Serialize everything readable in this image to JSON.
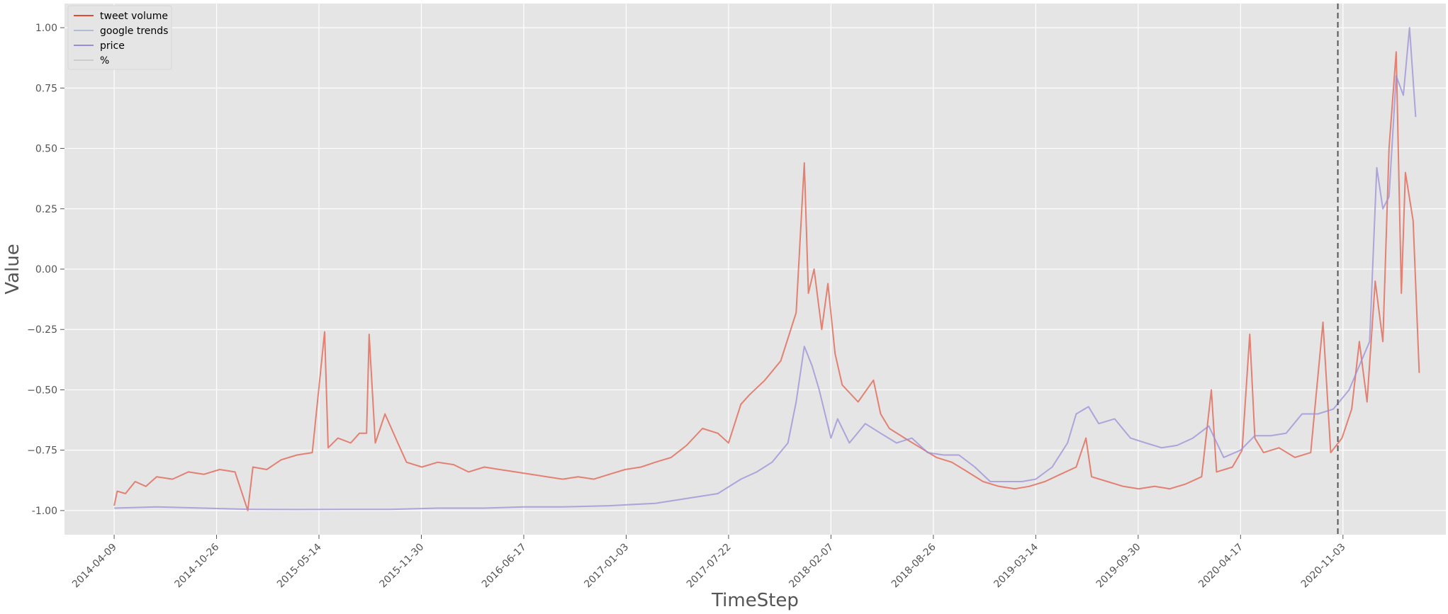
{
  "chart_data": {
    "type": "line",
    "title": "",
    "xlabel": "TimeStep",
    "ylabel": "Value",
    "ylim": [
      -1.1,
      1.1
    ],
    "xlim": [
      "2014-01-02",
      "2021-05-23"
    ],
    "grid": true,
    "legend_position": "top-left",
    "x_ticks": [
      "2014-04-09",
      "2014-10-26",
      "2015-05-14",
      "2015-11-30",
      "2016-06-17",
      "2017-01-03",
      "2017-07-22",
      "2018-02-07",
      "2018-08-26",
      "2019-03-14",
      "2019-09-30",
      "2020-04-17",
      "2020-11-03"
    ],
    "y_ticks": [
      "-1.00",
      "−0.75",
      "−0.50",
      "−0.25",
      "0.00",
      "0.25",
      "0.50",
      "0.75",
      "1.00"
    ],
    "vertical_marker": {
      "x": "2020-10-24",
      "style": "dashed",
      "color": "#555555"
    },
    "series": [
      {
        "name": "tweet volume",
        "color": "#e24a33",
        "opacity": 0.65,
        "points": [
          [
            "2014-04-09",
            -0.98
          ],
          [
            "2014-04-15",
            -0.92
          ],
          [
            "2014-05-01",
            -0.93
          ],
          [
            "2014-05-20",
            -0.88
          ],
          [
            "2014-06-10",
            -0.9
          ],
          [
            "2014-07-01",
            -0.86
          ],
          [
            "2014-08-01",
            -0.87
          ],
          [
            "2014-09-01",
            -0.84
          ],
          [
            "2014-10-01",
            -0.85
          ],
          [
            "2014-11-01",
            -0.83
          ],
          [
            "2014-12-01",
            -0.84
          ],
          [
            "2014-12-26",
            -1.0
          ],
          [
            "2015-01-05",
            -0.82
          ],
          [
            "2015-02-01",
            -0.83
          ],
          [
            "2015-03-01",
            -0.79
          ],
          [
            "2015-04-01",
            -0.77
          ],
          [
            "2015-05-01",
            -0.76
          ],
          [
            "2015-05-25",
            -0.26
          ],
          [
            "2015-06-01",
            -0.74
          ],
          [
            "2015-06-20",
            -0.7
          ],
          [
            "2015-07-15",
            -0.72
          ],
          [
            "2015-08-01",
            -0.68
          ],
          [
            "2015-08-15",
            -0.68
          ],
          [
            "2015-08-20",
            -0.27
          ],
          [
            "2015-09-01",
            -0.72
          ],
          [
            "2015-09-20",
            -0.6
          ],
          [
            "2015-10-15",
            -0.72
          ],
          [
            "2015-11-01",
            -0.8
          ],
          [
            "2015-12-01",
            -0.82
          ],
          [
            "2016-01-01",
            -0.8
          ],
          [
            "2016-02-01",
            -0.81
          ],
          [
            "2016-03-01",
            -0.84
          ],
          [
            "2016-04-01",
            -0.82
          ],
          [
            "2016-05-01",
            -0.83
          ],
          [
            "2016-06-01",
            -0.84
          ],
          [
            "2016-07-01",
            -0.85
          ],
          [
            "2016-08-01",
            -0.86
          ],
          [
            "2016-09-01",
            -0.87
          ],
          [
            "2016-10-01",
            -0.86
          ],
          [
            "2016-11-01",
            -0.87
          ],
          [
            "2016-12-01",
            -0.85
          ],
          [
            "2017-01-01",
            -0.83
          ],
          [
            "2017-02-01",
            -0.82
          ],
          [
            "2017-03-01",
            -0.8
          ],
          [
            "2017-04-01",
            -0.78
          ],
          [
            "2017-05-01",
            -0.73
          ],
          [
            "2017-06-01",
            -0.66
          ],
          [
            "2017-07-01",
            -0.68
          ],
          [
            "2017-07-22",
            -0.72
          ],
          [
            "2017-08-15",
            -0.56
          ],
          [
            "2017-09-01",
            -0.52
          ],
          [
            "2017-10-01",
            -0.46
          ],
          [
            "2017-11-01",
            -0.38
          ],
          [
            "2017-12-01",
            -0.18
          ],
          [
            "2017-12-17",
            0.44
          ],
          [
            "2017-12-25",
            -0.1
          ],
          [
            "2018-01-05",
            0.0
          ],
          [
            "2018-01-20",
            -0.25
          ],
          [
            "2018-02-01",
            -0.06
          ],
          [
            "2018-02-15",
            -0.35
          ],
          [
            "2018-03-01",
            -0.48
          ],
          [
            "2018-04-01",
            -0.55
          ],
          [
            "2018-05-01",
            -0.46
          ],
          [
            "2018-05-15",
            -0.6
          ],
          [
            "2018-06-01",
            -0.66
          ],
          [
            "2018-07-01",
            -0.7
          ],
          [
            "2018-08-01",
            -0.74
          ],
          [
            "2018-09-01",
            -0.78
          ],
          [
            "2018-10-01",
            -0.8
          ],
          [
            "2018-11-01",
            -0.84
          ],
          [
            "2018-12-01",
            -0.88
          ],
          [
            "2019-01-01",
            -0.9
          ],
          [
            "2019-02-01",
            -0.91
          ],
          [
            "2019-03-01",
            -0.9
          ],
          [
            "2019-04-01",
            -0.88
          ],
          [
            "2019-05-01",
            -0.85
          ],
          [
            "2019-06-01",
            -0.82
          ],
          [
            "2019-06-20",
            -0.7
          ],
          [
            "2019-07-01",
            -0.86
          ],
          [
            "2019-08-01",
            -0.88
          ],
          [
            "2019-09-01",
            -0.9
          ],
          [
            "2019-10-01",
            -0.91
          ],
          [
            "2019-11-01",
            -0.9
          ],
          [
            "2019-12-01",
            -0.91
          ],
          [
            "2020-01-01",
            -0.89
          ],
          [
            "2020-02-01",
            -0.86
          ],
          [
            "2020-02-20",
            -0.5
          ],
          [
            "2020-03-01",
            -0.84
          ],
          [
            "2020-04-01",
            -0.82
          ],
          [
            "2020-04-20",
            -0.75
          ],
          [
            "2020-05-05",
            -0.27
          ],
          [
            "2020-05-15",
            -0.7
          ],
          [
            "2020-06-01",
            -0.76
          ],
          [
            "2020-07-01",
            -0.74
          ],
          [
            "2020-08-01",
            -0.78
          ],
          [
            "2020-09-01",
            -0.76
          ],
          [
            "2020-09-25",
            -0.22
          ],
          [
            "2020-10-10",
            -0.76
          ],
          [
            "2020-11-01",
            -0.7
          ],
          [
            "2020-11-20",
            -0.58
          ],
          [
            "2020-12-05",
            -0.3
          ],
          [
            "2020-12-20",
            -0.55
          ],
          [
            "2021-01-05",
            -0.05
          ],
          [
            "2021-01-20",
            -0.3
          ],
          [
            "2021-02-01",
            0.5
          ],
          [
            "2021-02-15",
            0.9
          ],
          [
            "2021-02-25",
            -0.1
          ],
          [
            "2021-03-05",
            0.4
          ],
          [
            "2021-03-20",
            0.2
          ],
          [
            "2021-04-01",
            -0.43
          ]
        ]
      },
      {
        "name": "google trends",
        "color": "#b0bcd8",
        "opacity": 0.0,
        "points": []
      },
      {
        "name": "price",
        "color": "#988ed5",
        "opacity": 0.75,
        "points": [
          [
            "2014-04-09",
            -0.99
          ],
          [
            "2014-07-01",
            -0.985
          ],
          [
            "2014-10-01",
            -0.99
          ],
          [
            "2015-01-01",
            -0.995
          ],
          [
            "2015-04-01",
            -0.996
          ],
          [
            "2015-07-01",
            -0.995
          ],
          [
            "2015-10-01",
            -0.995
          ],
          [
            "2016-01-01",
            -0.99
          ],
          [
            "2016-04-01",
            -0.99
          ],
          [
            "2016-06-17",
            -0.985
          ],
          [
            "2016-09-01",
            -0.985
          ],
          [
            "2016-12-01",
            -0.98
          ],
          [
            "2017-03-01",
            -0.97
          ],
          [
            "2017-05-01",
            -0.95
          ],
          [
            "2017-07-01",
            -0.93
          ],
          [
            "2017-08-15",
            -0.87
          ],
          [
            "2017-09-15",
            -0.84
          ],
          [
            "2017-10-15",
            -0.8
          ],
          [
            "2017-11-15",
            -0.72
          ],
          [
            "2017-12-01",
            -0.55
          ],
          [
            "2017-12-17",
            -0.32
          ],
          [
            "2018-01-01",
            -0.4
          ],
          [
            "2018-01-15",
            -0.5
          ],
          [
            "2018-02-07",
            -0.7
          ],
          [
            "2018-02-20",
            -0.62
          ],
          [
            "2018-03-15",
            -0.72
          ],
          [
            "2018-04-15",
            -0.64
          ],
          [
            "2018-05-15",
            -0.68
          ],
          [
            "2018-06-15",
            -0.72
          ],
          [
            "2018-07-15",
            -0.7
          ],
          [
            "2018-08-15",
            -0.76
          ],
          [
            "2018-09-15",
            -0.77
          ],
          [
            "2018-10-15",
            -0.77
          ],
          [
            "2018-11-15",
            -0.82
          ],
          [
            "2018-12-15",
            -0.88
          ],
          [
            "2019-01-15",
            -0.88
          ],
          [
            "2019-02-15",
            -0.88
          ],
          [
            "2019-03-14",
            -0.87
          ],
          [
            "2019-04-15",
            -0.82
          ],
          [
            "2019-05-15",
            -0.72
          ],
          [
            "2019-06-01",
            -0.6
          ],
          [
            "2019-06-25",
            -0.57
          ],
          [
            "2019-07-15",
            -0.64
          ],
          [
            "2019-08-15",
            -0.62
          ],
          [
            "2019-09-15",
            -0.7
          ],
          [
            "2019-10-15",
            -0.72
          ],
          [
            "2019-11-15",
            -0.74
          ],
          [
            "2019-12-15",
            -0.73
          ],
          [
            "2020-01-15",
            -0.7
          ],
          [
            "2020-02-15",
            -0.65
          ],
          [
            "2020-03-15",
            -0.78
          ],
          [
            "2020-04-17",
            -0.75
          ],
          [
            "2020-05-15",
            -0.69
          ],
          [
            "2020-06-15",
            -0.69
          ],
          [
            "2020-07-15",
            -0.68
          ],
          [
            "2020-08-15",
            -0.6
          ],
          [
            "2020-09-15",
            -0.6
          ],
          [
            "2020-10-15",
            -0.58
          ],
          [
            "2020-11-15",
            -0.5
          ],
          [
            "2020-12-05",
            -0.4
          ],
          [
            "2020-12-25",
            -0.3
          ],
          [
            "2021-01-08",
            0.42
          ],
          [
            "2021-01-20",
            0.25
          ],
          [
            "2021-02-01",
            0.3
          ],
          [
            "2021-02-15",
            0.8
          ],
          [
            "2021-03-01",
            0.72
          ],
          [
            "2021-03-13",
            1.0
          ],
          [
            "2021-03-25",
            0.63
          ]
        ]
      },
      {
        "name": "%",
        "color": "#cccccc",
        "opacity": 0.0,
        "points": []
      }
    ]
  }
}
